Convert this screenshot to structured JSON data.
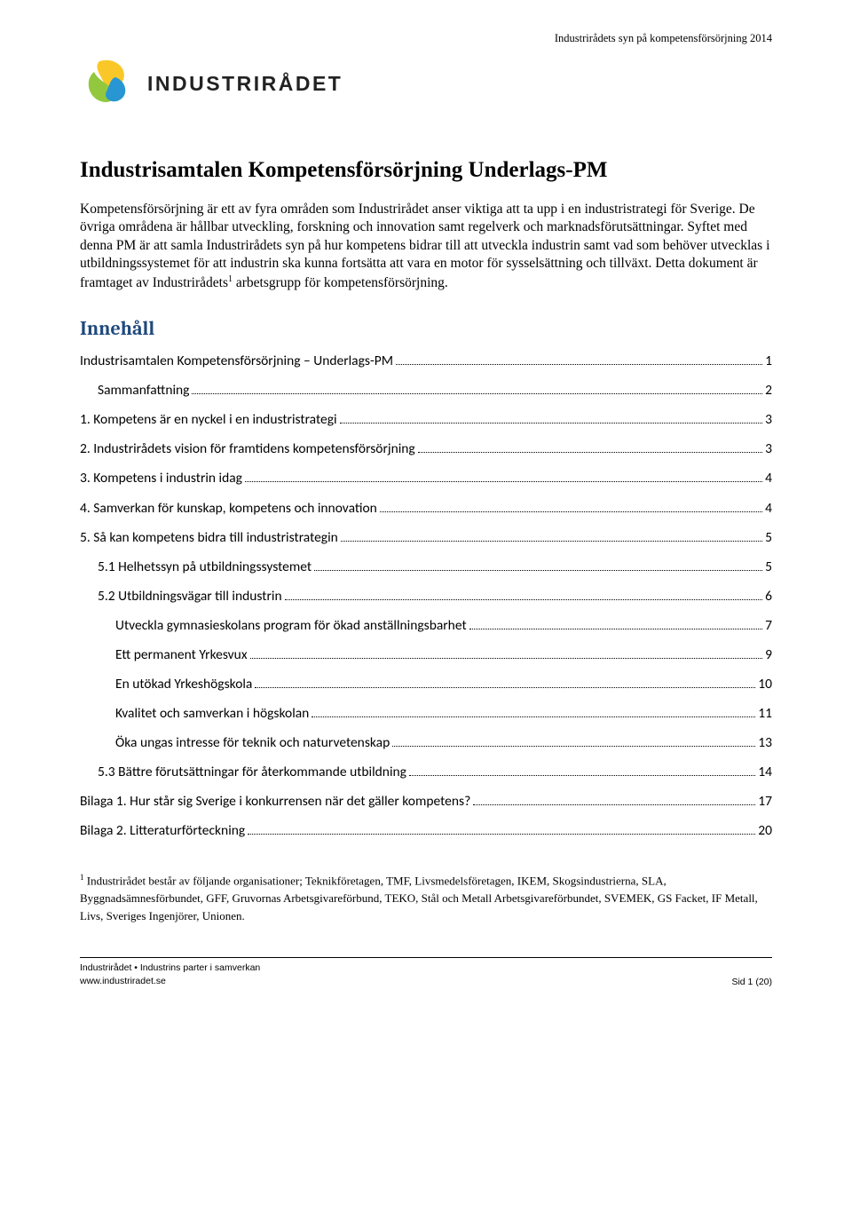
{
  "header": {
    "right": "Industrirådets syn på kompetensförsörjning 2014"
  },
  "logo": {
    "wordmark": "INDUSTRIRÅDET",
    "colors": {
      "yellow": "#f9c828",
      "green": "#93c83e",
      "blue": "#2796d2"
    }
  },
  "title": "Industrisamtalen Kompetensförsörjning Underlags-PM",
  "paragraph": {
    "text_before_sup": "Kompetensförsörjning är ett av fyra områden som Industrirådet anser viktiga att ta upp i en industristrategi för Sverige. De övriga områdena är hållbar utveckling, forskning och innovation samt regelverk och marknadsförutsättningar. Syftet med denna PM är att samla Industrirådets syn på hur kompetens bidrar till att utveckla industrin samt vad som behöver utvecklas i utbildningssystemet för att industrin ska kunna fortsätta att vara en motor för sysselsättning och tillväxt. Detta dokument är framtaget av Industrirådets",
    "sup": "1",
    "text_after_sup": " arbetsgrupp för kompetensförsörjning."
  },
  "toc_heading": "Innehåll",
  "toc": [
    {
      "label": "Industrisamtalen Kompetensförsörjning – Underlags-PM",
      "page": "1",
      "indent": 0
    },
    {
      "label": "Sammanfattning",
      "page": "2",
      "indent": 1
    },
    {
      "label": "1. Kompetens är en nyckel i en industristrategi",
      "page": "3",
      "indent": 0
    },
    {
      "label": "2. Industrirådets vision för framtidens kompetensförsörjning",
      "page": "3",
      "indent": 0
    },
    {
      "label": "3. Kompetens i industrin idag",
      "page": "4",
      "indent": 0
    },
    {
      "label": "4. Samverkan för kunskap, kompetens och innovation",
      "page": "4",
      "indent": 0
    },
    {
      "label": "5. Så kan kompetens bidra till industristrategin",
      "page": "5",
      "indent": 0
    },
    {
      "label": "5.1 Helhetssyn på utbildningssystemet",
      "page": "5",
      "indent": 1
    },
    {
      "label": "5.2 Utbildningsvägar till industrin",
      "page": "6",
      "indent": 1
    },
    {
      "label": "Utveckla gymnasieskolans program för ökad anställningsbarhet",
      "page": "7",
      "indent": 2
    },
    {
      "label": "Ett permanent Yrkesvux",
      "page": "9",
      "indent": 2
    },
    {
      "label": "En utökad Yrkeshögskola",
      "page": "10",
      "indent": 2
    },
    {
      "label": "Kvalitet och samverkan i högskolan",
      "page": "11",
      "indent": 2
    },
    {
      "label": "Öka ungas intresse för teknik och naturvetenskap",
      "page": "13",
      "indent": 2
    },
    {
      "label": "5.3 Bättre förutsättningar för återkommande utbildning",
      "page": "14",
      "indent": 1
    },
    {
      "label": "Bilaga 1. Hur står sig Sverige i konkurrensen när det gäller kompetens?",
      "page": "17",
      "indent": 0
    },
    {
      "label": "Bilaga 2. Litteraturförteckning",
      "page": "20",
      "indent": 0
    }
  ],
  "footnote": {
    "sup": "1",
    "text": " Industrirådet består av följande organisationer; Teknikföretagen, TMF, Livsmedelsföretagen, IKEM, Skogsindustrierna, SLA, Byggnadsämnesförbundet, GFF, Gruvornas Arbetsgivareförbund,  TEKO, Stål och Metall Arbetsgivareförbundet, SVEMEK, GS Facket, IF Metall, Livs, Sveriges Ingenjörer, Unionen."
  },
  "footer": {
    "line1": "Industrirådet • Industrins parter i samverkan",
    "line2": "www.industriradet.se",
    "page": "Sid 1 (20)"
  }
}
